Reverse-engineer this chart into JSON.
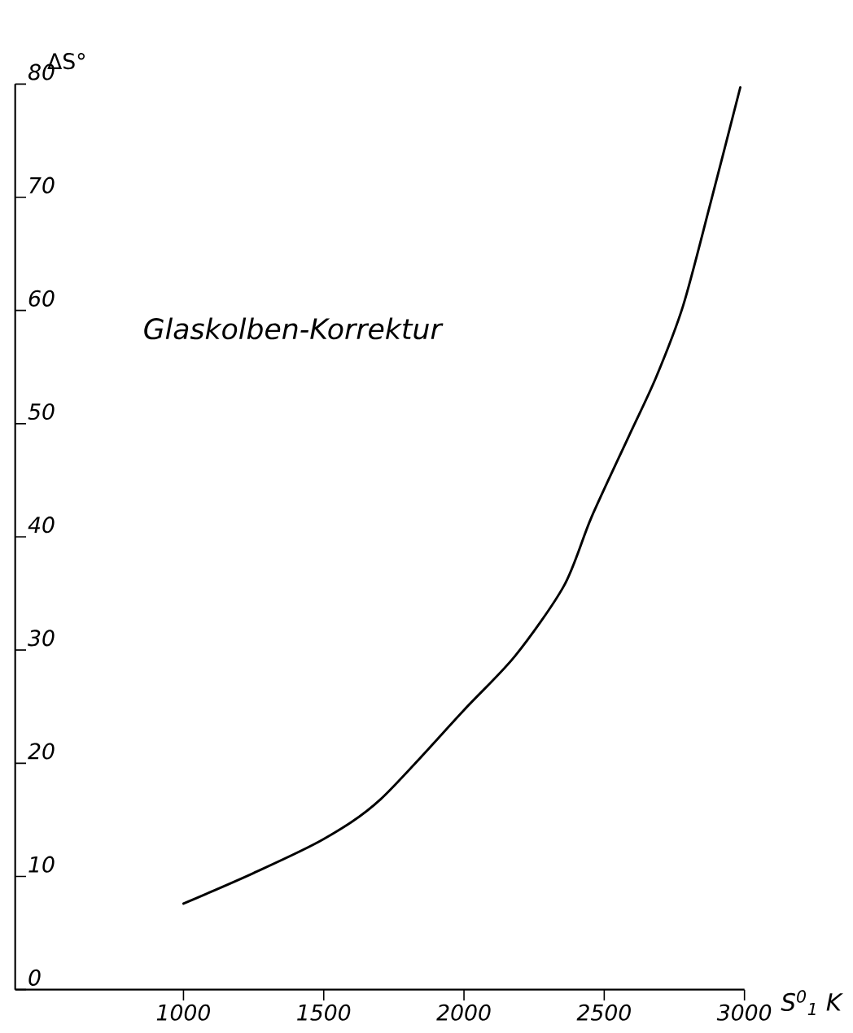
{
  "chart_data": {
    "type": "line",
    "xlabel": "S$^{0}$$_{1}$ K",
    "ylabel": "ΔS°",
    "annotations": [
      "Glaskolben-Korrektur"
    ],
    "x": [
      1000,
      1250,
      1500,
      1702,
      2000,
      2183,
      2357,
      2454,
      2588,
      2685,
      2781,
      2878,
      2985
    ],
    "series": [
      {
        "color": "#000000",
        "values": [
          7.6,
          10.3,
          13.3,
          16.8,
          24.7,
          29.5,
          35.7,
          41.7,
          48.9,
          54.1,
          60.4,
          69.4,
          79.7
        ]
      }
    ],
    "xlim": [
      400,
      3000
    ],
    "ylim": [
      0,
      80
    ],
    "xticks": [
      1000,
      1500,
      2000,
      2500,
      3000
    ],
    "yticks": [
      0,
      10,
      20,
      30,
      40,
      50,
      60,
      70,
      80
    ],
    "marker": "none",
    "line_style": "solid"
  }
}
